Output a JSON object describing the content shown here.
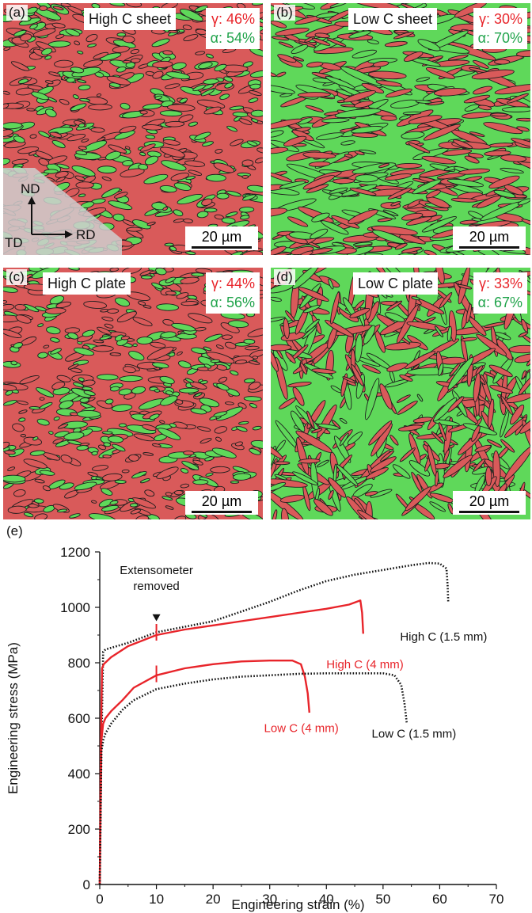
{
  "panels": [
    {
      "label": "(a)",
      "title": "High C sheet",
      "gamma": "γ: 46%",
      "alpha": "α: 54%",
      "scale": "20 µm"
    },
    {
      "label": "(b)",
      "title": "Low C sheet",
      "gamma": "γ: 30%",
      "alpha": "α: 70%",
      "scale": "20 µm"
    },
    {
      "label": "(c)",
      "title": "High C plate",
      "gamma": "γ: 44%",
      "alpha": "α: 56%",
      "scale": "20 µm"
    },
    {
      "label": "(d)",
      "title": "Low C plate",
      "gamma": "γ: 33%",
      "alpha": "α: 67%",
      "scale": "20 µm"
    }
  ],
  "axes_triad": {
    "nd": "ND",
    "rd": "RD",
    "td": "TD"
  },
  "colors": {
    "austenite": "#d95a5a",
    "ferrite": "#5fd85a",
    "boundary": "#1d1d1d",
    "red_curve": "#e8242a",
    "black_curve": "#111111"
  },
  "chart_data": {
    "type": "line",
    "panel_label": "(e)",
    "xlabel": "Engineering strain (%)",
    "ylabel": "Engineering stress (MPa)",
    "xlim": [
      0,
      70
    ],
    "ylim": [
      0,
      1200
    ],
    "xticks": [
      0,
      10,
      20,
      30,
      40,
      50,
      60,
      70
    ],
    "yticks": [
      0,
      200,
      400,
      600,
      800,
      1000,
      1200
    ],
    "annotation": {
      "lines": [
        "Extensometer",
        "removed"
      ],
      "x": 10,
      "y": 920
    },
    "series": [
      {
        "name": "High C (1.5 mm)",
        "style": "dotted",
        "color": "#111111",
        "x": [
          0,
          0.3,
          0.6,
          1,
          3,
          5,
          10,
          15,
          20,
          25,
          30,
          35,
          40,
          45,
          50,
          55,
          58,
          60,
          61.2,
          61.4,
          61.5
        ],
        "y": [
          0,
          500,
          840,
          848,
          860,
          872,
          910,
          930,
          950,
          985,
          1020,
          1060,
          1095,
          1118,
          1135,
          1152,
          1160,
          1158,
          1140,
          1080,
          1020
        ]
      },
      {
        "name": "High C (4 mm)",
        "style": "solid",
        "color": "#e8242a",
        "x": [
          0,
          0.2,
          0.4,
          0.7,
          2,
          5,
          10,
          15,
          20,
          25,
          30,
          35,
          40,
          44,
          46,
          46.3,
          46.5
        ],
        "y": [
          0,
          500,
          780,
          795,
          820,
          860,
          900,
          920,
          935,
          950,
          965,
          980,
          995,
          1010,
          1025,
          980,
          905
        ]
      },
      {
        "name": "Low C (4 mm)",
        "style": "solid",
        "color": "#e8242a",
        "x": [
          0,
          0.3,
          0.6,
          1,
          2,
          4,
          6,
          10,
          15,
          20,
          25,
          30,
          34,
          35.5,
          36.2,
          36.7,
          37
        ],
        "y": [
          0,
          520,
          580,
          600,
          625,
          665,
          710,
          755,
          780,
          795,
          805,
          808,
          808,
          795,
          750,
          690,
          620
        ]
      },
      {
        "name": "Low C (1.5 mm)",
        "style": "dotted",
        "color": "#111111",
        "x": [
          0,
          0.3,
          0.6,
          1,
          2,
          4,
          6,
          10,
          15,
          20,
          25,
          30,
          35,
          40,
          45,
          50,
          52,
          53.2,
          53.8,
          54.2
        ],
        "y": [
          0,
          480,
          520,
          545,
          580,
          630,
          665,
          705,
          725,
          740,
          750,
          755,
          760,
          762,
          762,
          762,
          755,
          720,
          650,
          580
        ]
      }
    ],
    "curve_labels": [
      {
        "text": "High C (1.5 mm)",
        "color": "#111111",
        "x": 53,
        "y": 880
      },
      {
        "text": "High C (4 mm)",
        "color": "#e8242a",
        "x": 40,
        "y": 780
      },
      {
        "text": "Low C (4 mm)",
        "color": "#e8242a",
        "x": 29,
        "y": 550
      },
      {
        "text": "Low C (1.5 mm)",
        "color": "#111111",
        "x": 48,
        "y": 530
      }
    ]
  }
}
